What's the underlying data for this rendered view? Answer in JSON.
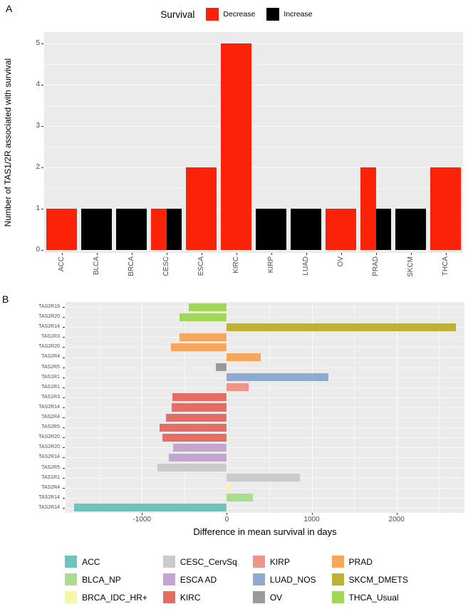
{
  "panel_a": {
    "label": "A"
  },
  "panel_b": {
    "label": "B"
  },
  "colors": {
    "panel_background": "#ebebeb",
    "gridline": "#ffffff",
    "axis_text": "#4d4d4d",
    "decrease": "#fa2209",
    "increase": "#000000"
  },
  "chart_data": [
    {
      "type": "bar",
      "legend_title": "Survival",
      "legend_position": "top",
      "categories": [
        "ACC",
        "BLCA",
        "BRCA",
        "CESC",
        "ESCA",
        "KIRC",
        "KIRP",
        "LUAD",
        "OV",
        "PRAD",
        "SKCM",
        "THCA"
      ],
      "series": [
        {
          "name": "Decrease",
          "color": "#fa2209",
          "values": [
            1,
            0,
            0,
            1,
            2,
            5,
            0,
            0,
            1,
            2,
            0,
            2
          ]
        },
        {
          "name": "Increase",
          "color": "#000000",
          "values": [
            0,
            1,
            1,
            1,
            0,
            0,
            1,
            1,
            0,
            1,
            1,
            0
          ]
        }
      ],
      "xlabel": "",
      "ylabel": "Number of TAS1/2R associated with survival",
      "ylim": [
        0,
        5
      ],
      "yticks": [
        0,
        1,
        2,
        3,
        4,
        5
      ],
      "grid": true
    },
    {
      "type": "bar",
      "orientation": "horizontal",
      "xlabel": "Difference in mean survival in days",
      "xlim": [
        -1900,
        2800
      ],
      "xticks": [
        -1000,
        0,
        1000,
        2000
      ],
      "xticks_minor": [
        -1500,
        -500,
        500,
        1500,
        2500
      ],
      "grid": true,
      "bars": [
        {
          "gene": "TAS2R19",
          "group": "THCA_Usual",
          "value": -450
        },
        {
          "gene": "TAS2R20",
          "group": "THCA_Usual",
          "value": -560
        },
        {
          "gene": "TAS2R14",
          "group": "SKCM_DMETS",
          "value": 2700
        },
        {
          "gene": "TAS1R3",
          "group": "PRAD",
          "value": -560
        },
        {
          "gene": "TAS2R20",
          "group": "PRAD",
          "value": -660
        },
        {
          "gene": "TAS2R4",
          "group": "PRAD",
          "value": 400
        },
        {
          "gene": "TAS2R5",
          "group": "OV",
          "value": -130
        },
        {
          "gene": "TAS1R1",
          "group": "LUAD_NOS",
          "value": 1200
        },
        {
          "gene": "TAS1R1",
          "group": "KIRP",
          "value": 260
        },
        {
          "gene": "TAS1R3",
          "group": "KIRC",
          "value": -640
        },
        {
          "gene": "TAS2R14",
          "group": "KIRC",
          "value": -650
        },
        {
          "gene": "TAS2R4",
          "group": "KIRC",
          "value": -720
        },
        {
          "gene": "TAS2R5",
          "group": "KIRC",
          "value": -790
        },
        {
          "gene": "TAS2R20",
          "group": "KIRC",
          "value": -760
        },
        {
          "gene": "TAS2R20",
          "group": "ESCA AD",
          "value": -630
        },
        {
          "gene": "TAS2R14",
          "group": "ESCA AD",
          "value": -680
        },
        {
          "gene": "TAS2R5",
          "group": "CESC_CervSq",
          "value": -820
        },
        {
          "gene": "TAS1R1",
          "group": "CESC_CervSq",
          "value": 860
        },
        {
          "gene": "TAS2R4",
          "group": "BRCA_IDC_HR+",
          "value": 50
        },
        {
          "gene": "TAS2R14",
          "group": "BLCA_NP",
          "value": 310
        },
        {
          "gene": "TAS2R14",
          "group": "ACC",
          "value": -1800
        }
      ],
      "groups": [
        {
          "label": "ACC",
          "color": "#6cc5bb"
        },
        {
          "label": "BLCA_NP",
          "color": "#abdc8f"
        },
        {
          "label": "BRCA_IDC_HR+",
          "color": "#f6f6a8"
        },
        {
          "label": "CESC_CervSq",
          "color": "#cbcbcb"
        },
        {
          "label": "ESCA AD",
          "color": "#c5a4cf"
        },
        {
          "label": "KIRC",
          "color": "#e46e64"
        },
        {
          "label": "KIRP",
          "color": "#ee958c"
        },
        {
          "label": "LUAD_NOS",
          "color": "#90aacd"
        },
        {
          "label": "OV",
          "color": "#9a9a9a"
        },
        {
          "label": "PRAD",
          "color": "#f7a65b"
        },
        {
          "label": "SKCM_DMETS",
          "color": "#bfb039"
        },
        {
          "label": "THCA_Usual",
          "color": "#a2d65b"
        }
      ],
      "legend_position": "bottom"
    }
  ]
}
